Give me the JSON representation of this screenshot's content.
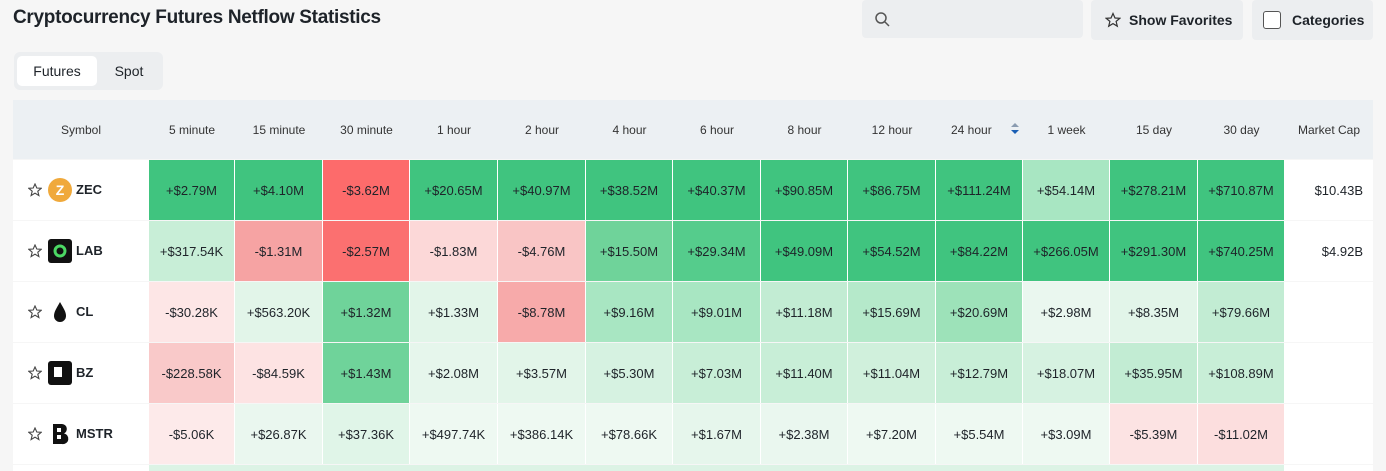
{
  "header": {
    "title": "Cryptocurrency Futures Netflow Statistics",
    "show_favorites": "Show Favorites",
    "categories": "Categories"
  },
  "tabs": [
    "Futures",
    "Spot"
  ],
  "table": {
    "columns": [
      "Symbol",
      "5 minute",
      "15 minute",
      "30 minute",
      "1 hour",
      "2 hour",
      "4 hour",
      "6 hour",
      "8 hour",
      "12 hour",
      "24 hour",
      "1 week",
      "15 day",
      "30 day",
      "Market Cap"
    ],
    "rows": [
      {
        "symbol": "ZEC",
        "cells": [
          "+$2.79M",
          "+$4.10M",
          "-$3.62M",
          "+$20.65M",
          "+$40.97M",
          "+$38.52M",
          "+$40.37M",
          "+$90.85M",
          "+$86.75M",
          "+$111.24M",
          "+$54.14M",
          "+$278.21M",
          "+$710.87M"
        ],
        "colors": [
          "#40c47f",
          "#40c47f",
          "#fd6b6b",
          "#40c47f",
          "#40c47f",
          "#40c47f",
          "#40c47f",
          "#40c47f",
          "#40c47f",
          "#40c47f",
          "#a8e6c2",
          "#40c47f",
          "#40c47f"
        ],
        "market_cap": "$10.43B"
      },
      {
        "symbol": "LAB",
        "cells": [
          "+$317.54K",
          "-$1.31M",
          "-$2.57M",
          "-$1.83M",
          "-$4.76M",
          "+$15.50M",
          "+$29.34M",
          "+$49.09M",
          "+$54.52M",
          "+$84.22M",
          "+$266.05M",
          "+$291.30M",
          "+$740.25M"
        ],
        "colors": [
          "#c8eed7",
          "#f6a3a3",
          "#fb7070",
          "#fcd8d8",
          "#f9c5c5",
          "#6fd39a",
          "#55cc8c",
          "#40c47f",
          "#40c47f",
          "#40c47f",
          "#40c47f",
          "#40c47f",
          "#40c47f"
        ],
        "market_cap": "$4.92B"
      },
      {
        "symbol": "CL",
        "cells": [
          "-$30.28K",
          "+$563.20K",
          "+$1.32M",
          "+$1.33M",
          "-$8.78M",
          "+$9.16M",
          "+$9.01M",
          "+$11.18M",
          "+$15.69M",
          "+$20.69M",
          "+$2.98M",
          "+$8.35M",
          "+$79.66M"
        ],
        "colors": [
          "#fde6e6",
          "#e2f5e9",
          "#6fd39a",
          "#e2f5e9",
          "#f7aaaa",
          "#a8e6c2",
          "#a8e6c2",
          "#c2ecd3",
          "#b5e9ca",
          "#9de2b9",
          "#eaf7ef",
          "#e2f5e9",
          "#c2ecd3"
        ]
      },
      {
        "symbol": "BZ",
        "cells": [
          "-$228.58K",
          "-$84.59K",
          "+$1.43M",
          "+$2.08M",
          "+$3.57M",
          "+$5.30M",
          "+$7.03M",
          "+$11.40M",
          "+$11.04M",
          "+$12.79M",
          "+$18.07M",
          "+$35.95M",
          "+$108.89M"
        ],
        "colors": [
          "#f9c9c9",
          "#fde3e3",
          "#6fd39a",
          "#e6f6ec",
          "#e2f5e9",
          "#d6f2e1",
          "#c8eed7",
          "#c8eed7",
          "#d0f0dc",
          "#c8eed7",
          "#d6f2e1",
          "#c2ecd3",
          "#c8eed7"
        ]
      },
      {
        "symbol": "MSTR",
        "cells": [
          "-$5.06K",
          "+$26.87K",
          "+$37.36K",
          "+$497.74K",
          "+$386.14K",
          "+$78.66K",
          "+$1.67M",
          "+$2.38M",
          "+$7.20M",
          "+$5.54M",
          "+$3.09M",
          "-$5.39M",
          "-$11.02M"
        ],
        "colors": [
          "#fdeaea",
          "#eaf7ef",
          "#e0f5e8",
          "#eef9f2",
          "#eef9f2",
          "#eef9f2",
          "#e6f6ec",
          "#eaf7ef",
          "#eef9f2",
          "#eef9f2",
          "#eef9f2",
          "#fce3e3",
          "#fcdede"
        ]
      }
    ]
  }
}
